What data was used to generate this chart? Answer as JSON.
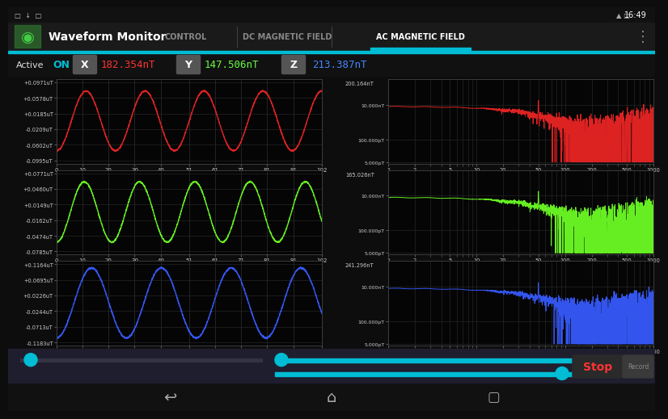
{
  "bg_color": "#0d0d0d",
  "panel_bg": "#1a1a1a",
  "grid_color": "#2a2a2a",
  "text_color": "#ffffff",
  "cyan_color": "#00bcd4",
  "title": "Waveform Monitor",
  "tabs": [
    "CONTROL",
    "DC MAGNETIC FIELD",
    "AC MAGNETIC FIELD"
  ],
  "active_tab": 2,
  "x_value": "182.354nT",
  "x_color": "#ff3333",
  "y_value": "147.506nT",
  "y_color": "#66ff44",
  "z_value": "213.387nT",
  "z_color": "#4488ff",
  "left_plots": {
    "colors": [
      "#dd2222",
      "#66ee22",
      "#3355ee"
    ],
    "yticks_labels": [
      [
        "+0.0971uT",
        "+0.0578uT",
        "+0.0185uT",
        "-0.0209uT",
        "-0.0602uT",
        "-0.0995uT"
      ],
      [
        "+0.0771uT",
        "+0.0460uT",
        "+0.0149uT",
        "-0.0162uT",
        "-0.0474uT",
        "-0.0785uT"
      ],
      [
        "+0.1164uT",
        "+0.0695uT",
        "+0.0226uT",
        "-0.0244uT",
        "-0.0713uT",
        "-0.1183uT"
      ]
    ],
    "yticks_vals": [
      [
        0.0971,
        0.0578,
        0.0185,
        -0.0209,
        -0.0602,
        -0.0995
      ],
      [
        0.0771,
        0.046,
        0.0149,
        -0.0162,
        -0.0474,
        -0.0785
      ],
      [
        0.1164,
        0.0695,
        0.0226,
        -0.0244,
        -0.0713,
        -0.1183
      ]
    ],
    "xticks": [
      0,
      10,
      20,
      30,
      40,
      51,
      61,
      71,
      81,
      91,
      102
    ],
    "amplitudes": [
      0.075,
      0.06,
      0.105
    ],
    "n_cycles": [
      4.5,
      4.8,
      3.8
    ]
  },
  "right_plots": {
    "colors": [
      "#dd2222",
      "#66ee22",
      "#3355ee"
    ],
    "top_labels": [
      "200.164nT",
      "165.026nT",
      "241.296nT"
    ],
    "ytick_labels": [
      "200.164nT",
      "10.000nT",
      "100.000pT",
      "5.000pT"
    ],
    "xtick_labels": [
      "1",
      "2",
      "5",
      "10",
      "20",
      "50",
      "100",
      "200",
      "500",
      "1000"
    ]
  },
  "slider_color": "#00bcd4",
  "stop_color": "#ff3333",
  "record_color": "#444444"
}
